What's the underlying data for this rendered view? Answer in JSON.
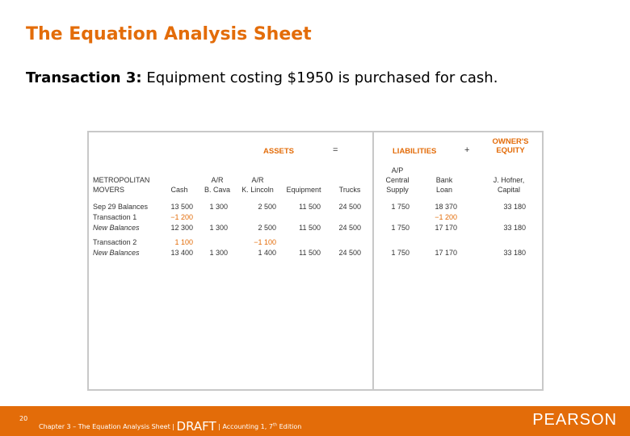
{
  "title": "The Equation Analysis Sheet",
  "subtitle": {
    "label": "Transaction 3:",
    "text": " Equipment costing $1950 is purchased for cash."
  },
  "table": {
    "assets_header": "ASSETS",
    "equals": "=",
    "liabilities_header": "LIABILITIES",
    "plus": "+",
    "equity_header_1": "OWNER'S",
    "equity_header_2": "EQUITY",
    "company_1": "METROPOLITAN",
    "company_2": "MOVERS",
    "columns": [
      {
        "l1": "",
        "l2": "Cash"
      },
      {
        "l1": "A/R",
        "l2": "B. Cava"
      },
      {
        "l1": "A/R",
        "l2": "K. Lincoln"
      },
      {
        "l1": "",
        "l2": "Equipment"
      },
      {
        "l1": "",
        "l2": "Trucks"
      },
      {
        "l0": "A/P",
        "l1": "Central",
        "l2": "Supply"
      },
      {
        "l1": "Bank",
        "l2": "Loan"
      },
      {
        "l1": "J. Hofner,",
        "l2": "Capital"
      }
    ],
    "rows": [
      {
        "label": "Sep 29 Balances",
        "style": "normal",
        "values": [
          "13 500",
          "1 300",
          "2 500",
          "11 500",
          "24 500",
          "1 750",
          "18 370",
          "33 180"
        ]
      },
      {
        "label": "Transaction 1",
        "style": "normal",
        "values": [
          "−1 200",
          "",
          "",
          "",
          "",
          "",
          "−1 200",
          ""
        ]
      },
      {
        "label": "New Balances",
        "style": "italic",
        "values": [
          "12 300",
          "1 300",
          "2 500",
          "11 500",
          "24 500",
          "1 750",
          "17 170",
          "33 180"
        ]
      },
      {
        "label": "Transaction 2",
        "style": "normal",
        "values": [
          "1 100",
          "",
          "−1 100",
          "",
          "",
          "",
          "",
          ""
        ]
      },
      {
        "label": "New Balances",
        "style": "italic",
        "values": [
          "13 400",
          "1 300",
          "1 400",
          "11 500",
          "24 500",
          "1 750",
          "17 170",
          "33 180"
        ]
      }
    ]
  },
  "footer": {
    "page": "20",
    "text_before": "Chapter 3 – The Equation Analysis Sheet | ",
    "draft": "DRAFT",
    "text_after": " | Accounting 1, 7",
    "sup": "th",
    "text_end": " Edition",
    "logo": "PEARSON"
  }
}
